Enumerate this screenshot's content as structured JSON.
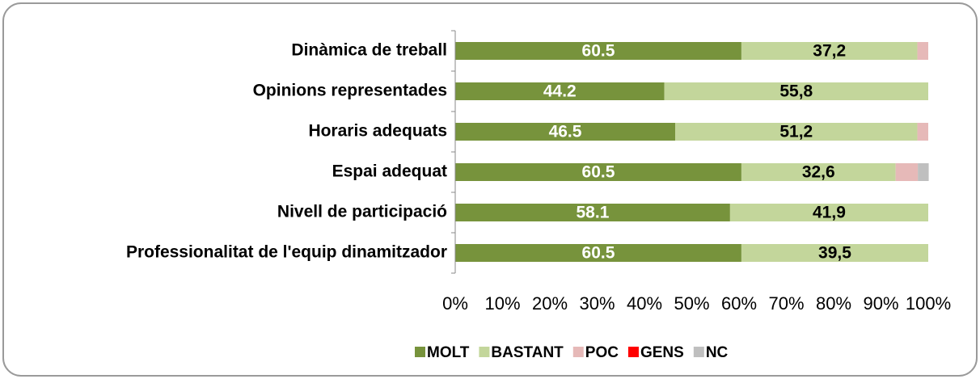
{
  "chart_data": {
    "type": "stacked_bar_horizontal",
    "categories": [
      "Dinàmica de treball",
      "Opinions representades",
      "Horaris adequats",
      "Espai adequat",
      "Nivell de participació",
      "Professionalitat de l'equip dinamitzador"
    ],
    "series": [
      {
        "name": "MOLT",
        "color": "#77933c",
        "label_color": "#ffffff",
        "values": [
          60.5,
          44.2,
          46.5,
          60.5,
          58.1,
          60.5
        ],
        "value_labels": [
          "60.5",
          "44.2",
          "46.5",
          "60.5",
          "58.1",
          "60.5"
        ]
      },
      {
        "name": "BASTANT",
        "color": "#c3d69b",
        "label_color": "#000000",
        "values": [
          37.2,
          55.8,
          51.2,
          32.6,
          41.9,
          39.5
        ],
        "value_labels": [
          "37,2",
          "55,8",
          "51,2",
          "32,6",
          "41,9",
          "39,5"
        ]
      },
      {
        "name": "POC",
        "color": "#e6b9b8",
        "values": [
          2.3,
          0,
          2.3,
          4.7,
          0,
          0
        ]
      },
      {
        "name": "GENS",
        "color": "#ff0000",
        "values": [
          0,
          0,
          0,
          0,
          0,
          0
        ]
      },
      {
        "name": "NC",
        "color": "#bfbfbf",
        "values": [
          0,
          0,
          0,
          2.3,
          0,
          0
        ]
      }
    ],
    "xlim": [
      0,
      100
    ],
    "xticks": [
      {
        "value": 0,
        "label": "0%"
      },
      {
        "value": 10,
        "label": "10%"
      },
      {
        "value": 20,
        "label": "20%"
      },
      {
        "value": 30,
        "label": "30%"
      },
      {
        "value": 40,
        "label": "40%"
      },
      {
        "value": 50,
        "label": "50%"
      },
      {
        "value": 60,
        "label": "60%"
      },
      {
        "value": 70,
        "label": "70%"
      },
      {
        "value": 80,
        "label": "80%"
      },
      {
        "value": 90,
        "label": "90%"
      },
      {
        "value": 100,
        "label": "100%"
      }
    ],
    "legend": "bottom"
  }
}
